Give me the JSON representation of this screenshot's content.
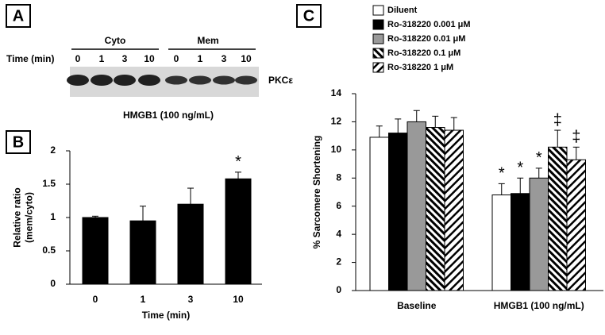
{
  "panel_a": {
    "label": "A",
    "groups": [
      "Cyto",
      "Mem"
    ],
    "row_label": "Time (min)",
    "lanes": [
      "0",
      "1",
      "3",
      "10",
      "0",
      "1",
      "3",
      "10"
    ],
    "band_label": "PKCε",
    "caption": "HMGB1 (100 ng/mL)"
  },
  "chart_data": [
    {
      "type": "bar",
      "panel": "B",
      "ylabel": [
        "Relative ratio",
        "(mem/cyto)"
      ],
      "xlabel": "Time (min)",
      "categories": [
        "0",
        "1",
        "3",
        "10"
      ],
      "series": [
        {
          "color": "#000000",
          "values": [
            1.0,
            0.95,
            1.2,
            1.58
          ],
          "errors": [
            0.02,
            0.22,
            0.24,
            0.1
          ],
          "marks": [
            null,
            null,
            null,
            "*"
          ]
        }
      ],
      "ylim": [
        0,
        2
      ],
      "yticks": [
        0,
        0.5,
        1,
        1.5,
        2
      ]
    },
    {
      "type": "bar",
      "panel": "C",
      "ylabel": [
        "% Sarcomere Shortening"
      ],
      "categories": [
        "Baseline",
        "HMGB1 (100 ng/mL)"
      ],
      "series": [
        {
          "name": "Diluent",
          "color": "#ffffff",
          "values": [
            10.9,
            6.8
          ],
          "errors": [
            0.8,
            0.8
          ],
          "marks": [
            null,
            "*"
          ]
        },
        {
          "name": "Ro-318220 0.001 μM",
          "color": "#000000",
          "values": [
            11.2,
            6.9
          ],
          "errors": [
            1.0,
            1.1
          ],
          "marks": [
            null,
            "*"
          ]
        },
        {
          "name": "Ro-318220 0.01 μM",
          "color": "#999999",
          "values": [
            12.0,
            8.0
          ],
          "errors": [
            0.8,
            0.7
          ],
          "marks": [
            null,
            "*"
          ]
        },
        {
          "name": "Ro-318220 0.1 μM",
          "color": "#000000",
          "pattern": "back-diagonal",
          "values": [
            11.6,
            10.2
          ],
          "errors": [
            0.8,
            1.2
          ],
          "marks": [
            null,
            "‡"
          ]
        },
        {
          "name": "Ro-318220 1 μM",
          "color": "#000000",
          "pattern": "diagonal",
          "values": [
            11.4,
            9.3
          ],
          "errors": [
            0.9,
            0.9
          ],
          "marks": [
            null,
            "‡"
          ]
        }
      ],
      "ylim": [
        0,
        14
      ],
      "yticks": [
        0,
        2,
        4,
        6,
        8,
        10,
        12,
        14
      ]
    }
  ]
}
